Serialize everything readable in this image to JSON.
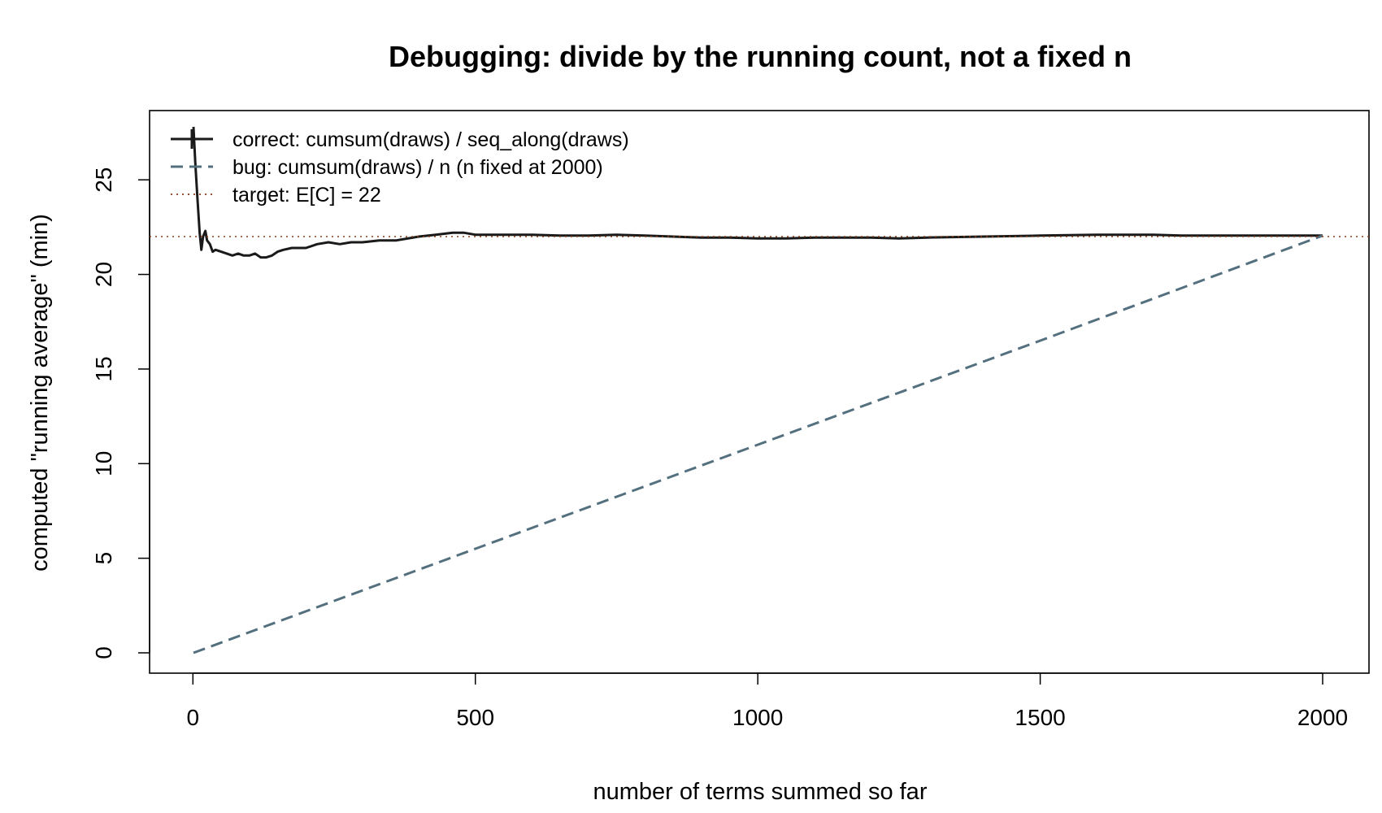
{
  "chart_data": {
    "type": "line",
    "title": "Debugging: divide by the running count, not a fixed n",
    "xlabel": "number of terms summed so far",
    "ylabel": "computed \"running average\" (min)",
    "xlim": [
      1,
      2000
    ],
    "ylim": [
      0,
      27.5
    ],
    "xticks": [
      0,
      500,
      1000,
      1500,
      2000
    ],
    "yticks": [
      0,
      5,
      10,
      15,
      20,
      25
    ],
    "grid": false,
    "legend_position": "top-left",
    "legend": [
      "correct: cumsum(draws) / seq_along(draws)",
      "bug: cumsum(draws) / n   (n fixed at 2000)",
      "target: E[C] = 22"
    ],
    "series": [
      {
        "name": "correct: cumsum(draws) / seq_along(draws)",
        "color": "#1a1a1a",
        "style": "solid",
        "x": [
          1,
          4,
          8,
          12,
          15,
          18,
          22,
          25,
          30,
          35,
          40,
          50,
          60,
          70,
          80,
          90,
          100,
          110,
          120,
          130,
          140,
          150,
          160,
          175,
          190,
          200,
          220,
          240,
          260,
          280,
          300,
          330,
          360,
          400,
          430,
          460,
          480,
          500,
          550,
          600,
          650,
          700,
          750,
          800,
          850,
          900,
          950,
          1000,
          1050,
          1100,
          1150,
          1200,
          1250,
          1300,
          1400,
          1500,
          1600,
          1650,
          1700,
          1750,
          1800,
          1850,
          1900,
          1950,
          2000
        ],
        "y": [
          27.8,
          26.0,
          24.0,
          22.2,
          21.3,
          22.0,
          22.3,
          21.8,
          21.6,
          21.2,
          21.3,
          21.2,
          21.1,
          21.0,
          21.1,
          21.0,
          21.0,
          21.1,
          20.9,
          20.9,
          21.0,
          21.2,
          21.3,
          21.4,
          21.4,
          21.4,
          21.6,
          21.7,
          21.6,
          21.7,
          21.7,
          21.8,
          21.8,
          22.0,
          22.1,
          22.2,
          22.2,
          22.1,
          22.1,
          22.1,
          22.05,
          22.05,
          22.1,
          22.05,
          22.0,
          21.95,
          21.95,
          21.9,
          21.9,
          21.95,
          21.95,
          21.95,
          21.9,
          21.95,
          22.0,
          22.05,
          22.1,
          22.1,
          22.1,
          22.05,
          22.05,
          22.05,
          22.05,
          22.05,
          22.05
        ]
      },
      {
        "name": "bug: cumsum(draws) / n   (n fixed at 2000)",
        "color": "#54707f",
        "style": "dashed",
        "x": [
          1,
          500,
          1000,
          1500,
          2000
        ],
        "y": [
          0.0,
          5.5,
          11.0,
          16.5,
          22.05
        ]
      },
      {
        "name": "target: E[C] = 22",
        "color": "#8b3a1c",
        "style": "dotted",
        "y_const": 22
      }
    ]
  }
}
